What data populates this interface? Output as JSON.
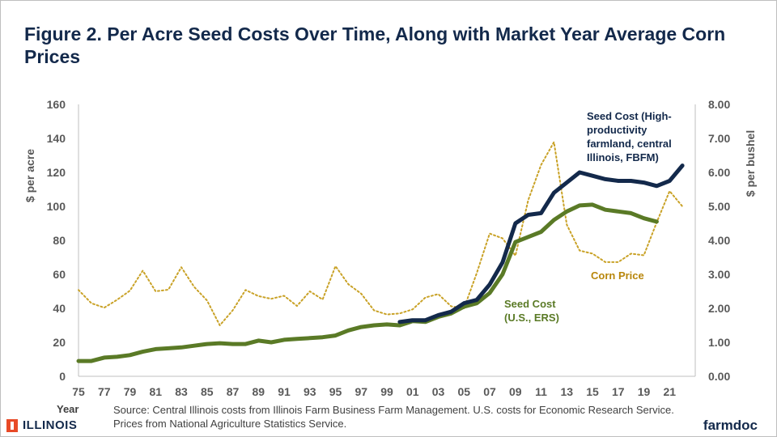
{
  "chart_data": {
    "type": "line",
    "title": "Figure 2.  Per Acre Seed Costs Over Time, Along with Market Year Average Corn Prices",
    "xlabel": "Year",
    "ylabel_left": "$ per acre",
    "ylabel_right": "$ per bushel",
    "ylim_left": [
      0,
      160
    ],
    "ylim_right": [
      0,
      8
    ],
    "x_tick_labels": [
      "75",
      "77",
      "79",
      "81",
      "83",
      "85",
      "87",
      "89",
      "91",
      "93",
      "95",
      "97",
      "99",
      "01",
      "03",
      "05",
      "07",
      "09",
      "11",
      "13",
      "15",
      "17",
      "19",
      "21"
    ],
    "y_left_ticks": [
      "0",
      "20",
      "40",
      "60",
      "80",
      "100",
      "120",
      "140",
      "160"
    ],
    "y_right_ticks": [
      "0.00",
      "1.00",
      "2.00",
      "3.00",
      "4.00",
      "5.00",
      "6.00",
      "7.00",
      "8.00"
    ],
    "grid": false,
    "series": [
      {
        "name": "Seed Cost (High-productivity farmland, central Illinois, FBFM)",
        "axis": "left",
        "color": "#13294b",
        "style": "solid",
        "x": [
          2000,
          2001,
          2002,
          2003,
          2004,
          2005,
          2006,
          2007,
          2008,
          2009,
          2010,
          2011,
          2012,
          2013,
          2014,
          2015,
          2016,
          2017,
          2018,
          2019,
          2020,
          2021,
          2022
        ],
        "values": [
          32,
          33,
          33,
          36,
          38,
          43,
          45,
          54,
          67,
          90,
          95,
          96,
          108,
          114,
          120,
          118,
          116,
          115,
          115,
          114,
          112,
          115,
          124
        ]
      },
      {
        "name": "Seed Cost (U.S., ERS)",
        "axis": "left",
        "color": "#5a7a26",
        "style": "solid",
        "x": [
          1975,
          1976,
          1977,
          1978,
          1979,
          1980,
          1981,
          1982,
          1983,
          1984,
          1985,
          1986,
          1987,
          1988,
          1989,
          1990,
          1991,
          1992,
          1993,
          1994,
          1995,
          1996,
          1997,
          1998,
          1999,
          2000,
          2001,
          2002,
          2003,
          2004,
          2005,
          2006,
          2007,
          2008,
          2009,
          2010,
          2011,
          2012,
          2013,
          2014,
          2015,
          2016,
          2017,
          2018,
          2019,
          2020
        ],
        "values": [
          9,
          9,
          11,
          11.5,
          12.5,
          14.5,
          16,
          16.5,
          17,
          18,
          19,
          19.5,
          19,
          19,
          21,
          20,
          21.5,
          22,
          22.5,
          23,
          24,
          27,
          29,
          30,
          30.5,
          30,
          32.5,
          32,
          35,
          37,
          41,
          43,
          49,
          60,
          79,
          82,
          85,
          92,
          97,
          100.5,
          101,
          98,
          97,
          96,
          93,
          91
        ]
      },
      {
        "name": "Corn Price",
        "axis": "right",
        "color": "#c9a227",
        "style": "dotted",
        "x": [
          1975,
          1976,
          1977,
          1978,
          1979,
          1980,
          1981,
          1982,
          1983,
          1984,
          1985,
          1986,
          1987,
          1988,
          1989,
          1990,
          1991,
          1992,
          1993,
          1994,
          1995,
          1996,
          1997,
          1998,
          1999,
          2000,
          2001,
          2002,
          2003,
          2004,
          2005,
          2006,
          2007,
          2008,
          2009,
          2010,
          2011,
          2012,
          2013,
          2014,
          2015,
          2016,
          2017,
          2018,
          2019,
          2020,
          2021,
          2022
        ],
        "values": [
          2.54,
          2.15,
          2.02,
          2.25,
          2.52,
          3.11,
          2.5,
          2.55,
          3.21,
          2.63,
          2.23,
          1.5,
          1.94,
          2.54,
          2.36,
          2.28,
          2.37,
          2.07,
          2.5,
          2.26,
          3.24,
          2.71,
          2.43,
          1.94,
          1.82,
          1.85,
          1.97,
          2.32,
          2.42,
          2.06,
          2.0,
          3.04,
          4.2,
          4.06,
          3.55,
          5.18,
          6.22,
          6.89,
          4.46,
          3.7,
          3.61,
          3.36,
          3.36,
          3.61,
          3.56,
          4.53,
          5.45,
          5.0
        ]
      }
    ],
    "annotations": [
      {
        "text_lines": [
          "Seed Cost (High-",
          "productivity",
          "farmland, central",
          "Illinois, FBFM)"
        ],
        "color": "#13294b"
      },
      {
        "text_lines": [
          "Seed Cost",
          "(U.S., ERS)"
        ],
        "color": "#5a7a26"
      },
      {
        "text_lines": [
          "Corn Price"
        ],
        "color": "#b8860b"
      }
    ]
  },
  "footer": {
    "source_text": "Source: Central Illinois costs from Illinois Farm Business Farm Management. U.S. costs for Economic Research Service.  Prices from National Agriculture Statistics Service.",
    "illinois_logo_text": "ILLINOIS",
    "farmdoc_logo_text": "farmdoc"
  }
}
